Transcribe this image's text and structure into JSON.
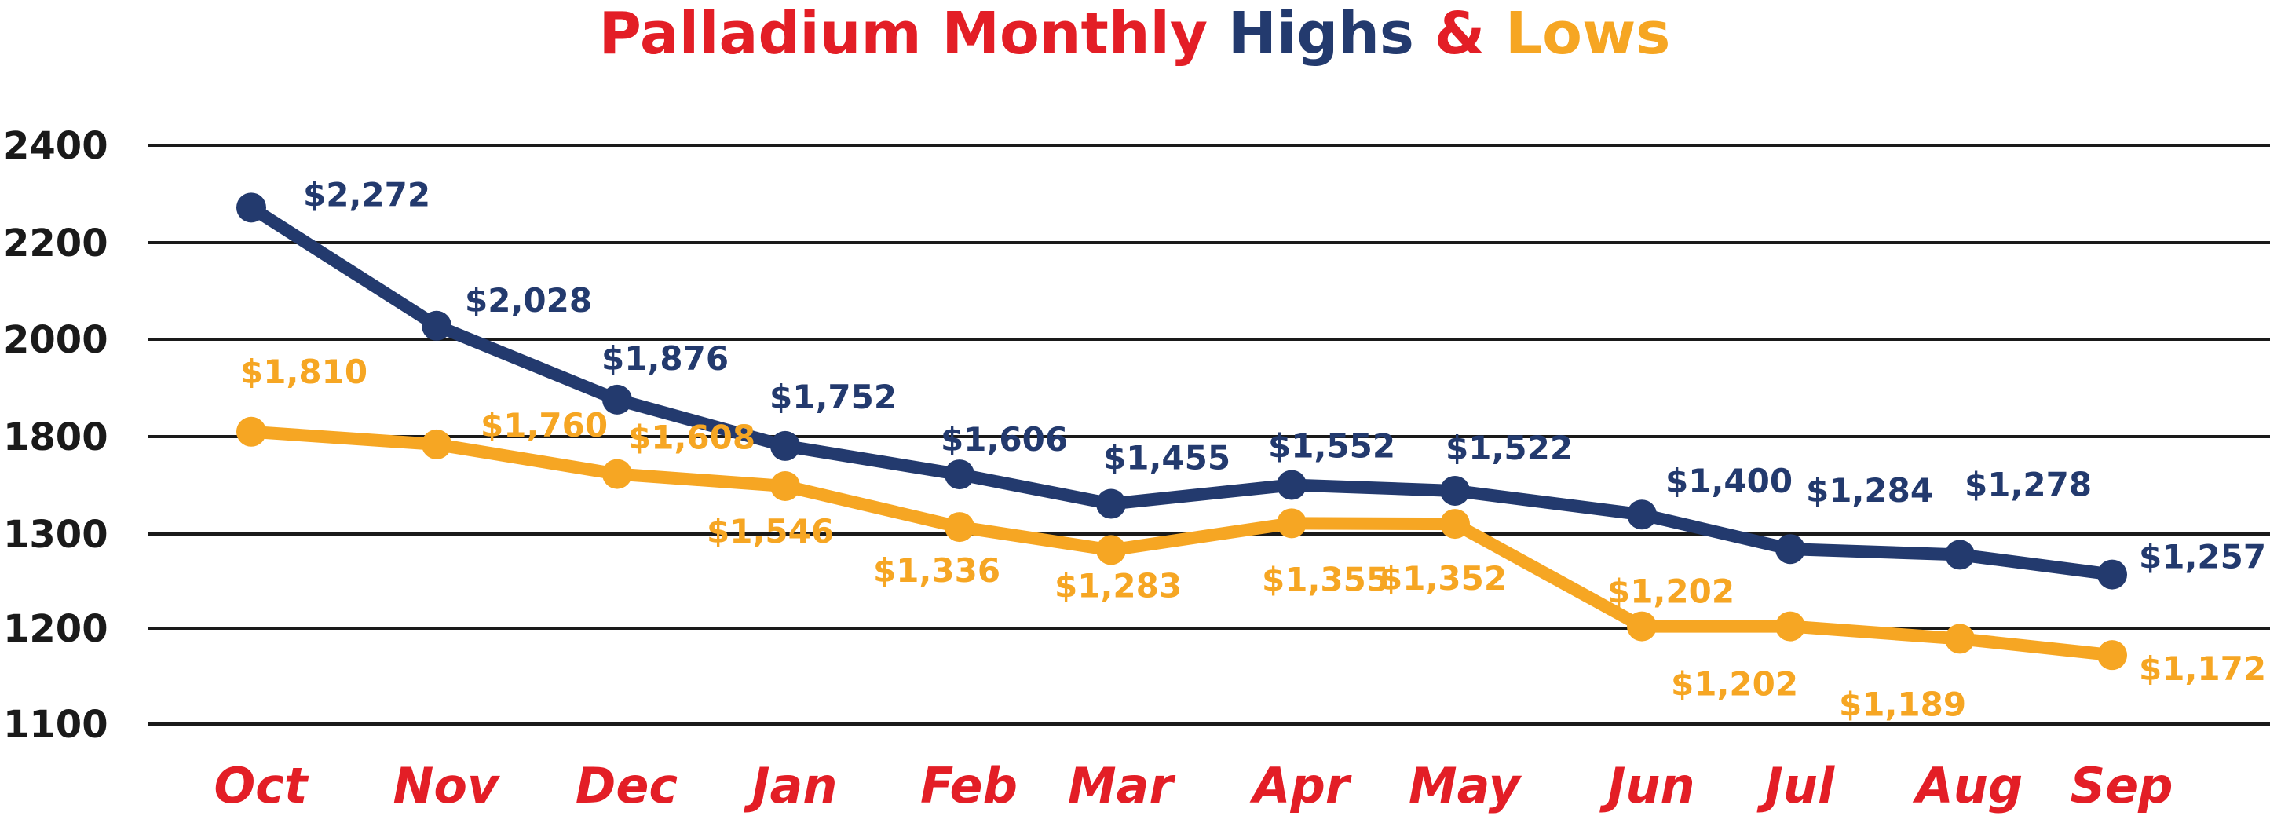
{
  "colors": {
    "title_red": "#e31e26",
    "highs": "#233a6e",
    "lows": "#f6a623",
    "grid": "#1a1a1a"
  },
  "chart_data": {
    "type": "line",
    "title_parts": [
      {
        "text": "Palladium Monthly ",
        "color": "#e31e26"
      },
      {
        "text": "Highs ",
        "color": "#233a6e"
      },
      {
        "text": "& ",
        "color": "#e31e26"
      },
      {
        "text": "Lows",
        "color": "#f6a623"
      }
    ],
    "categories": [
      "Oct",
      "Nov",
      "Dec",
      "Jan",
      "Feb",
      "Mar",
      "Apr",
      "May",
      "Jun",
      "Jul",
      "Aug",
      "Sep"
    ],
    "y_ticks": [
      "2400",
      "2200",
      "2000",
      "1800",
      "1300",
      "1200",
      "1100"
    ],
    "grid": true,
    "series": [
      {
        "key": "highs",
        "color": "#233a6e",
        "values": [
          2272,
          2028,
          1876,
          1752,
          1606,
          1455,
          1552,
          1522,
          1400,
          1284,
          1278,
          1257
        ],
        "labels": [
          "$2,272",
          "$2,028",
          "$1,876",
          "$1,752",
          "$1,606",
          "$1,455",
          "$1,552",
          "$1,522",
          "$1,400",
          "$1,284",
          "$1,278",
          "$1,257"
        ]
      },
      {
        "key": "lows",
        "color": "#f6a623",
        "values": [
          1810,
          1760,
          1608,
          1546,
          1336,
          1283,
          1355,
          1352,
          1202,
          1202,
          1189,
          1172
        ],
        "labels": [
          "$1,810",
          "$1,760",
          "$1,608",
          "$1,546",
          "$1,336",
          "$1,283",
          "$1,355",
          "$1,352",
          "$1,202",
          "$1,202",
          "$1,189",
          "$1,172"
        ]
      }
    ]
  }
}
